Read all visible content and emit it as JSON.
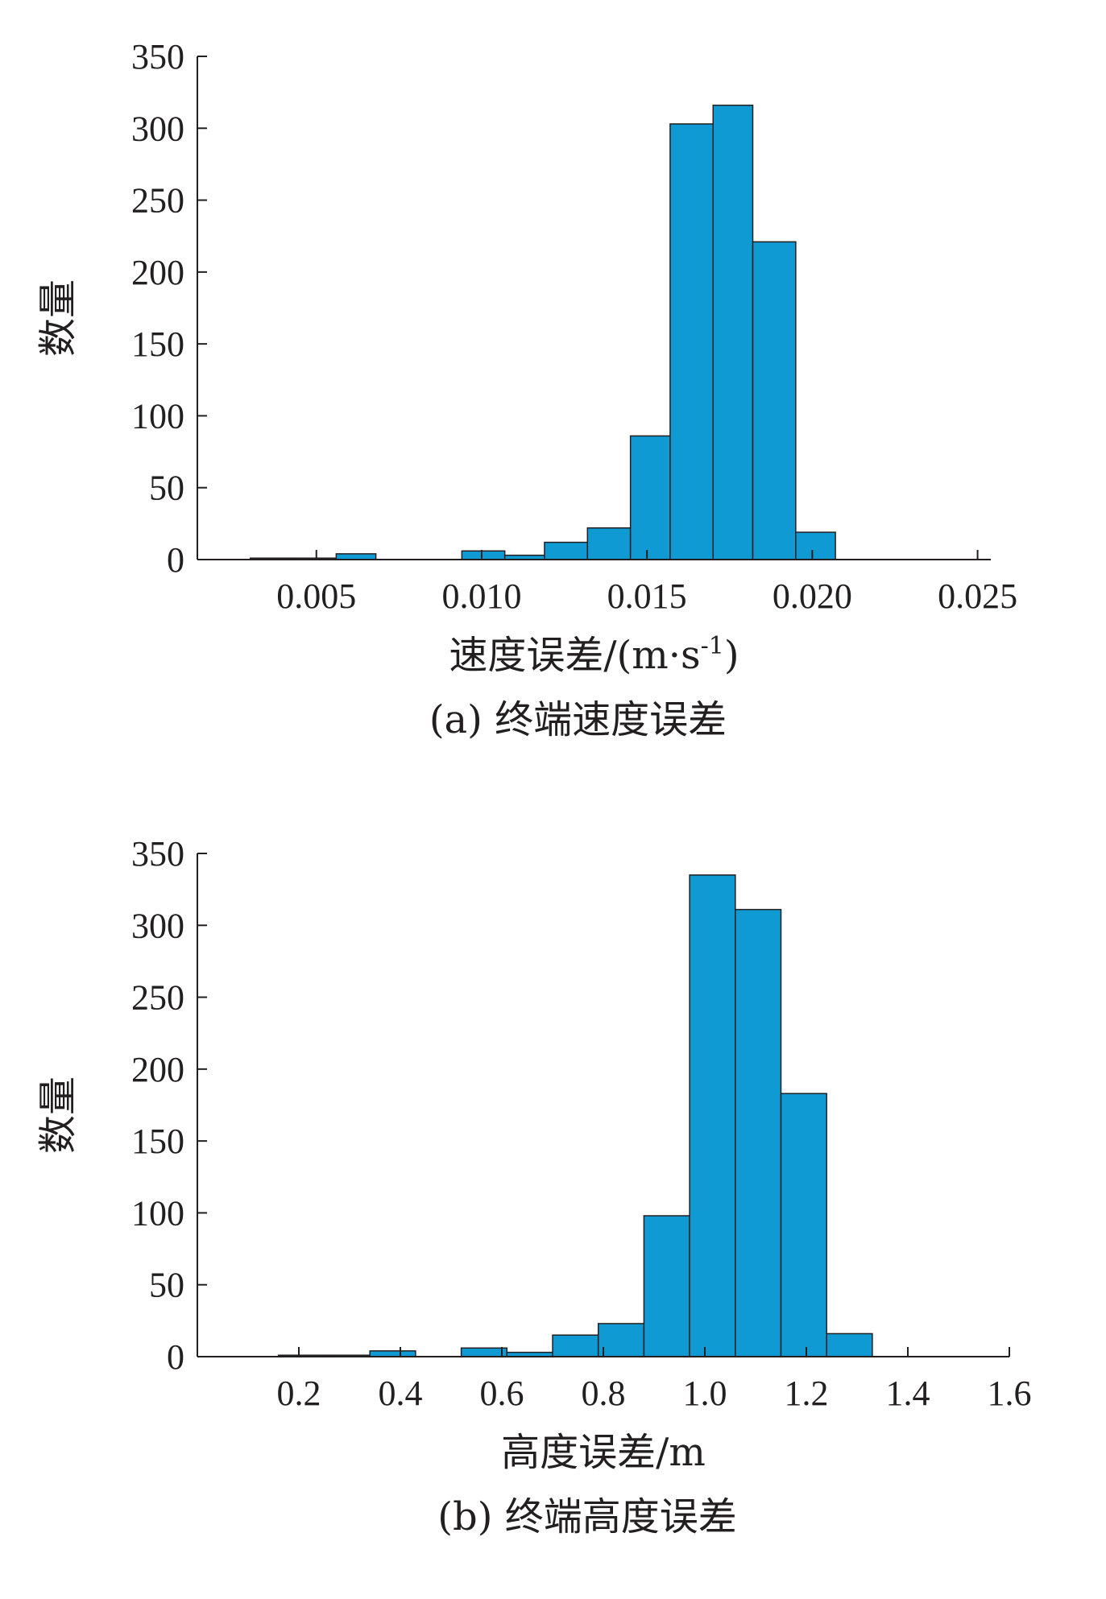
{
  "chart_data": [
    {
      "type": "bar",
      "title": "",
      "caption": "(a) 终端速度误差",
      "xlabel": "速度误差/(m·s",
      "xlabel_sup": "-1",
      "xlabel_close": ")",
      "ylabel": "数量",
      "xlim": [
        0.0014,
        0.0254
      ],
      "ylim": [
        0,
        350
      ],
      "xticks": [
        0.005,
        0.01,
        0.015,
        0.02,
        0.025
      ],
      "xtick_labels": [
        "0.005",
        "0.010",
        "0.015",
        "0.020",
        "0.025"
      ],
      "yticks": [
        0,
        50,
        100,
        150,
        200,
        250,
        300,
        350
      ],
      "ytick_labels": [
        "0",
        "50",
        "100",
        "150",
        "200",
        "250",
        "300",
        "350"
      ],
      "bin_edges": [
        0.0017,
        0.003,
        0.0043,
        0.0056,
        0.0068,
        0.0081,
        0.0094,
        0.0107,
        0.0119,
        0.0132,
        0.0145,
        0.0157,
        0.017,
        0.0182,
        0.0195,
        0.0207
      ],
      "values": [
        0,
        1,
        1,
        4,
        0,
        0,
        6,
        3,
        12,
        22,
        86,
        303,
        316,
        221,
        19
      ],
      "bar_color": "#0f9ad3"
    },
    {
      "type": "bar",
      "title": "",
      "caption": "(b) 终端高度误差",
      "xlabel": "高度误差/m",
      "ylabel": "数量",
      "xlim": [
        0.0,
        1.6
      ],
      "ylim": [
        0,
        350
      ],
      "xticks": [
        0.2,
        0.4,
        0.6,
        0.8,
        1.0,
        1.2,
        1.4,
        1.6
      ],
      "xtick_labels": [
        "0.2",
        "0.4",
        "0.6",
        "0.8",
        "1.0",
        "1.2",
        "1.4",
        "1.6"
      ],
      "yticks": [
        0,
        50,
        100,
        150,
        200,
        250,
        300,
        350
      ],
      "ytick_labels": [
        "0",
        "50",
        "100",
        "150",
        "200",
        "250",
        "300",
        "350"
      ],
      "bin_edges": [
        0.16,
        0.25,
        0.34,
        0.43,
        0.52,
        0.61,
        0.7,
        0.79,
        0.88,
        0.97,
        1.06,
        1.15,
        1.24,
        1.33
      ],
      "values": [
        1,
        1,
        4,
        0,
        6,
        3,
        15,
        23,
        98,
        335,
        311,
        183,
        16
      ],
      "bar_color": "#0f9ad3"
    }
  ]
}
